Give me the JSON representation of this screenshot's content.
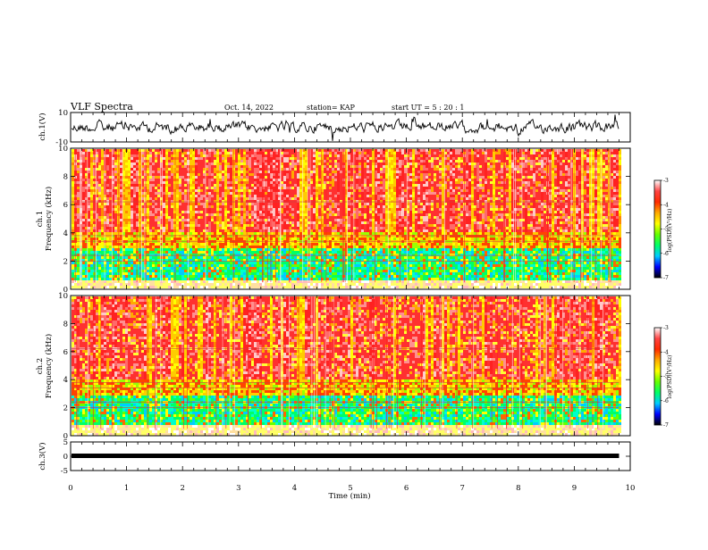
{
  "header": {
    "title": "VLF Spectra",
    "date": "Oct. 14, 2022",
    "station": "station= KAP",
    "start": "start  UT  =   5  : 20 : 1"
  },
  "chart_data": {
    "type": "heatmap",
    "xlabel": "Time  (min)",
    "xlim": [
      0,
      10
    ],
    "xticks": [
      "0",
      "1",
      "2",
      "3",
      "4",
      "5",
      "6",
      "7",
      "8",
      "9",
      "10"
    ],
    "data_end_min": 9.8,
    "panels": {
      "ch1_wave": {
        "ylabel": "ch.1(V)",
        "ylim": [
          -10,
          10
        ],
        "yticks": [
          "10",
          "-10"
        ]
      },
      "ch1_spec": {
        "ylabel": "Frequency  (kHz)",
        "ylabel_top": "ch.1",
        "ylim": [
          0,
          10
        ],
        "yticks": [
          "0",
          "2",
          "4",
          "6",
          "8",
          "10"
        ]
      },
      "ch2_spec": {
        "ylabel": "Frequency  (kHz)",
        "ylabel_top": "ch.2",
        "ylim": [
          0,
          10
        ],
        "yticks": [
          "0",
          "2",
          "4",
          "6",
          "8",
          "10"
        ]
      },
      "ch3_wave": {
        "ylabel": "ch.3(V)",
        "ylim": [
          -5,
          5
        ],
        "yticks": [
          "5",
          "0",
          "-5"
        ]
      }
    },
    "colorbar": {
      "label": "log(PSD)(V²/Hz)",
      "range": [
        -7,
        -3
      ],
      "ticks": [
        "-3",
        "-4",
        "-5",
        "-6",
        "-7"
      ],
      "colors": [
        "#000000",
        "#0000ff",
        "#00ccff",
        "#00ff66",
        "#66ff00",
        "#ffff00",
        "#ffaa00",
        "#ff2a00",
        "#ff4444",
        "#ffffff"
      ]
    }
  }
}
